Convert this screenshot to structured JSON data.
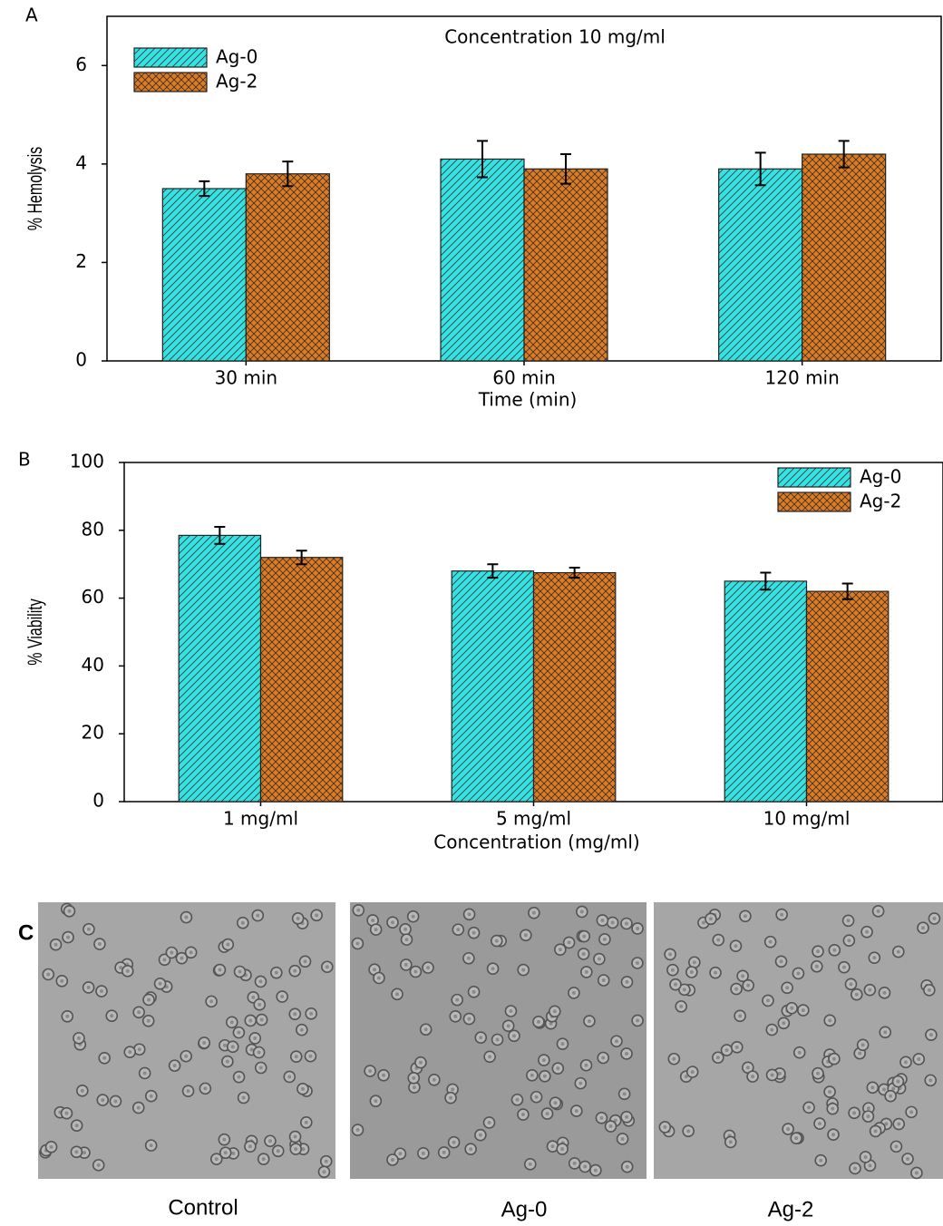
{
  "chart_data": [
    {
      "type": "bar",
      "panel_label": "A",
      "title": "Concentration 10 mg/ml",
      "categories": [
        "30 min",
        "60 min",
        "120 min"
      ],
      "series": [
        {
          "name": "Ag-0",
          "color": "#33e3e3",
          "values": [
            3.5,
            4.1,
            3.9
          ],
          "errors": [
            0.15,
            0.37,
            0.33
          ]
        },
        {
          "name": "Ag-2",
          "color": "#e07a1f",
          "values": [
            3.8,
            3.9,
            4.2
          ],
          "errors": [
            0.25,
            0.3,
            0.27
          ]
        }
      ],
      "xlabel": "Time (min)",
      "ylabel": "% Hemolysis",
      "ylim": [
        0,
        7
      ],
      "yticks": [
        0,
        2,
        4,
        6
      ],
      "legend": "top-left"
    },
    {
      "type": "bar",
      "panel_label": "B",
      "categories": [
        "1 mg/ml",
        "5 mg/ml",
        "10 mg/ml"
      ],
      "series": [
        {
          "name": "Ag-0",
          "color": "#33e3e3",
          "values": [
            78.5,
            68,
            65
          ],
          "errors": [
            2.5,
            2,
            2.5
          ]
        },
        {
          "name": "Ag-2",
          "color": "#e07a1f",
          "values": [
            72,
            67.5,
            62
          ],
          "errors": [
            2,
            1.5,
            2.3
          ]
        }
      ],
      "xlabel": "Concentration (mg/ml)",
      "ylabel": "% Viability",
      "ylim": [
        0,
        100
      ],
      "yticks": [
        0,
        20,
        40,
        60,
        80,
        100
      ],
      "legend": "top-right"
    }
  ],
  "images": {
    "panel_label": "C",
    "captions": [
      "Control",
      "Ag-0",
      "Ag-2"
    ]
  }
}
